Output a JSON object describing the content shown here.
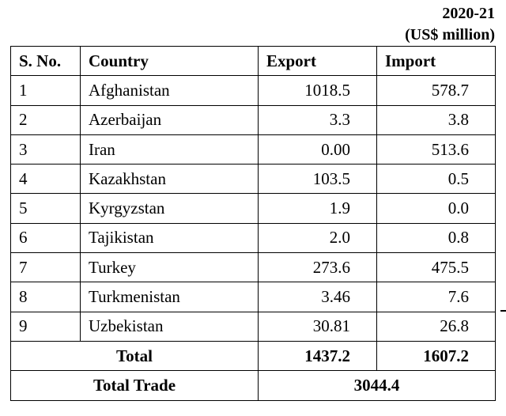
{
  "caption": {
    "year": "2020-21",
    "unit": "(US$ million)"
  },
  "headers": {
    "sno": "S. No.",
    "country": "Country",
    "export": "Export",
    "import": "Import"
  },
  "rows": [
    {
      "sno": "1",
      "country": "Afghanistan",
      "export": "1018.5",
      "import": "578.7"
    },
    {
      "sno": "2",
      "country": "Azerbaijan",
      "export": "3.3",
      "import": "3.8"
    },
    {
      "sno": "3",
      "country": "Iran",
      "export": "0.00",
      "import": "513.6"
    },
    {
      "sno": "4",
      "country": "Kazakhstan",
      "export": "103.5",
      "import": "0.5"
    },
    {
      "sno": "5",
      "country": "Kyrgyzstan",
      "export": "1.9",
      "import": "0.0"
    },
    {
      "sno": "6",
      "country": "Tajikistan",
      "export": "2.0",
      "import": "0.8"
    },
    {
      "sno": "7",
      "country": "Turkey",
      "export": "273.6",
      "import": "475.5"
    },
    {
      "sno": "8",
      "country": "Turkmenistan",
      "export": "3.46",
      "import": "7.6"
    },
    {
      "sno": "9",
      "country": "Uzbekistan",
      "export": "30.81",
      "import": "26.8"
    }
  ],
  "total": {
    "label": "Total",
    "export": "1437.2",
    "import": "1607.2"
  },
  "total_trade": {
    "label": "Total Trade",
    "value": "3044.4"
  }
}
